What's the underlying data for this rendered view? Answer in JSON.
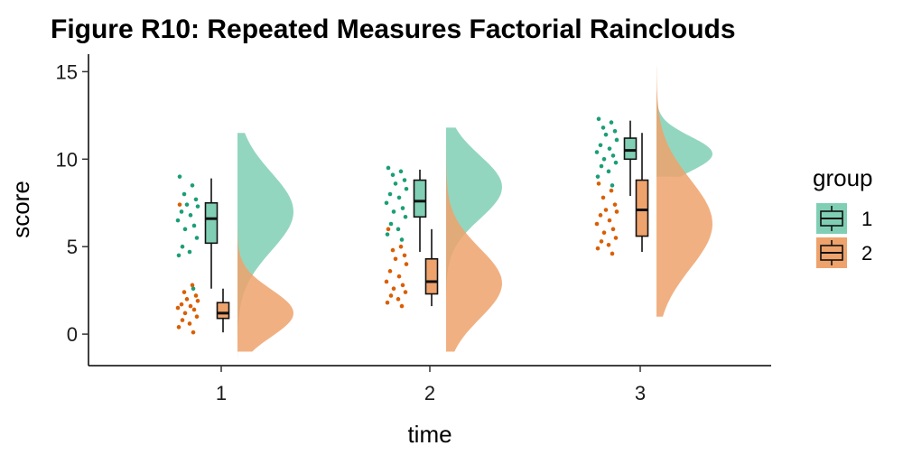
{
  "chart_data": {
    "type": "raincloud",
    "title": "Figure R10: Repeated Measures Factorial Rainclouds",
    "xlabel": "time",
    "ylabel": "score",
    "categories": [
      "1",
      "2",
      "3"
    ],
    "ylim": [
      -1.8,
      16
    ],
    "yticks": [
      "0",
      "5",
      "10",
      "15"
    ],
    "grid": false,
    "legend": {
      "title": "group",
      "position": "right"
    },
    "series": [
      {
        "name": "1",
        "color": "#1b9e77",
        "fill": "#80cfb4",
        "points": [
          [
            9.0,
            8.5,
            8.0,
            7.7,
            7.4,
            7.3,
            7.0,
            6.8,
            6.5,
            6.2,
            6.0,
            5.5,
            5.0,
            4.7,
            4.5,
            2.6
          ],
          [
            9.5,
            9.3,
            9.1,
            8.8,
            8.6,
            8.3,
            8.0,
            7.8,
            7.5,
            7.2,
            7.0,
            6.7,
            6.3,
            6.0,
            5.7,
            5.4
          ],
          [
            12.3,
            12.1,
            11.8,
            11.6,
            11.4,
            11.1,
            10.8,
            10.6,
            10.4,
            10.2,
            10.0,
            9.8,
            9.6,
            9.3,
            9.0,
            8.5
          ]
        ],
        "box": [
          {
            "min": 2.6,
            "q1": 5.2,
            "median": 6.6,
            "q3": 7.5,
            "max": 8.9
          },
          {
            "min": 4.7,
            "q1": 6.7,
            "median": 7.6,
            "q3": 8.8,
            "max": 9.4
          },
          {
            "min": 7.9,
            "q1": 10.0,
            "median": 10.5,
            "q3": 11.2,
            "max": 12.2
          }
        ],
        "density_range": [
          [
            -1.5,
            11.5
          ],
          [
            2.3,
            11.8
          ],
          [
            9.0,
            13.5
          ]
        ],
        "density_peak": [
          7.0,
          8.4,
          10.3
        ]
      },
      {
        "name": "2",
        "color": "#d95f02",
        "fill": "#eea26c",
        "points": [
          [
            7.4,
            2.8,
            2.4,
            2.2,
            2.0,
            1.9,
            1.7,
            1.6,
            1.5,
            1.4,
            1.2,
            1.0,
            0.8,
            0.6,
            0.4,
            0.1
          ],
          [
            6.0,
            5.0,
            4.8,
            4.5,
            4.3,
            4.0,
            3.6,
            3.3,
            3.0,
            2.8,
            2.6,
            2.4,
            2.2,
            2.0,
            1.8,
            1.6
          ],
          [
            8.6,
            8.2,
            7.8,
            7.4,
            7.1,
            7.0,
            6.8,
            6.5,
            6.3,
            6.0,
            5.8,
            5.5,
            5.3,
            5.1,
            4.9,
            4.6
          ]
        ],
        "box": [
          {
            "min": 0.1,
            "q1": 0.9,
            "median": 1.2,
            "q3": 1.8,
            "max": 2.6
          },
          {
            "min": 1.6,
            "q1": 2.3,
            "median": 3.0,
            "q3": 4.3,
            "max": 6.0
          },
          {
            "min": 4.7,
            "q1": 5.6,
            "median": 7.1,
            "q3": 8.8,
            "max": 11.5
          }
        ],
        "density_range": [
          [
            -1.0,
            8.5
          ],
          [
            -1.0,
            11.8
          ],
          [
            1.0,
            15.3
          ]
        ],
        "density_peak": [
          1.2,
          2.9,
          6.3
        ]
      }
    ]
  }
}
